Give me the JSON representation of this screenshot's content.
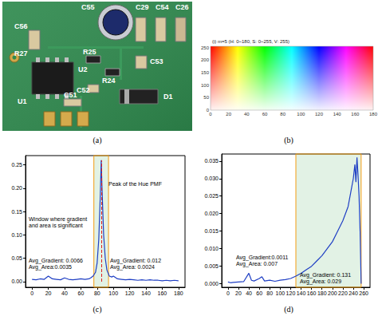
{
  "panels": [
    "(a)",
    "(b)",
    "(c)",
    "(d)"
  ],
  "photo": {
    "labels": [
      "C55",
      "C29",
      "C54",
      "C26",
      "C56",
      "R27",
      "R25",
      "U2",
      "R24",
      "C53",
      "C52",
      "U1",
      "C51",
      "D1"
    ]
  },
  "color_map": {
    "title": "(i) m=5 (H: 0~180, S: 0~255, V: 255)",
    "xlim": [
      0,
      180
    ],
    "xticks": [
      0,
      20,
      40,
      60,
      80,
      100,
      120,
      140,
      160,
      180
    ],
    "ylim": [
      0,
      255
    ],
    "yticks": [
      0,
      50,
      100,
      150,
      200,
      250
    ]
  },
  "chart_data": [
    {
      "type": "line",
      "color": "#1f3fc4",
      "x": [
        0,
        5,
        10,
        15,
        20,
        25,
        30,
        35,
        40,
        45,
        50,
        55,
        60,
        65,
        70,
        72,
        75,
        78,
        80,
        82,
        84,
        85,
        86,
        88,
        90,
        92,
        95,
        98,
        100,
        105,
        110,
        115,
        120,
        125,
        130,
        135,
        140,
        145,
        150,
        155,
        160,
        165,
        170,
        175,
        180
      ],
      "values": [
        0.005,
        0.004,
        0.006,
        0.005,
        0.012,
        0.006,
        0.005,
        0.004,
        0.008,
        0.005,
        0.004,
        0.005,
        0.006,
        0.005,
        0.006,
        0.008,
        0.012,
        0.02,
        0.04,
        0.09,
        0.19,
        0.26,
        0.2,
        0.1,
        0.05,
        0.025,
        0.012,
        0.01,
        0.012,
        0.006,
        0.005,
        0.004,
        0.005,
        0.004,
        0.003,
        0.004,
        0.003,
        0.004,
        0.003,
        0.003,
        0.002,
        0.003,
        0.002,
        0.003,
        0.002
      ],
      "xlim": [
        -8,
        188
      ],
      "xticks": [
        0,
        20,
        40,
        60,
        80,
        100,
        120,
        140,
        160,
        180
      ],
      "ylim": [
        -0.012,
        0.27
      ],
      "yticks": [
        {
          "value": 0,
          "label": "0.00"
        },
        0.05,
        {
          "value": 0.1,
          "label": "0.10"
        },
        0.15,
        {
          "value": 0.2,
          "label": "0.20"
        },
        0.25
      ],
      "window": [
        76,
        94
      ],
      "annotations": [
        "Peak of the Hue PMF",
        "Window where gradient\nand area is significant",
        "Avg_Gradient: 0.0066\nAvg_Area:0.0035",
        "Avg_Gradient: 0.012\nAvg_Area: 0.0024"
      ]
    },
    {
      "type": "line",
      "color": "#1f3fc4",
      "x": [
        0,
        5,
        10,
        20,
        30,
        40,
        45,
        50,
        60,
        65,
        70,
        80,
        90,
        100,
        110,
        120,
        130,
        140,
        150,
        160,
        170,
        180,
        190,
        200,
        210,
        220,
        230,
        235,
        240,
        243,
        245,
        247,
        249,
        251,
        253,
        255
      ],
      "values": [
        0.0005,
        0.0003,
        0.0004,
        0.0005,
        0.0006,
        0.003,
        0.001,
        0.0008,
        0.0015,
        0.002,
        0.0008,
        0.001,
        0.0007,
        0.001,
        0.0012,
        0.0015,
        0.0022,
        0.003,
        0.004,
        0.005,
        0.0065,
        0.008,
        0.01,
        0.012,
        0.015,
        0.018,
        0.022,
        0.026,
        0.03,
        0.034,
        0.029,
        0.036,
        0.031,
        0.025,
        0.015,
        0.0
      ],
      "xlim": [
        -12,
        272
      ],
      "xticks": [
        0,
        20,
        40,
        60,
        80,
        100,
        120,
        140,
        160,
        180,
        200,
        220,
        240,
        260
      ],
      "ylim": [
        -0.001,
        0.037
      ],
      "yticks": [
        {
          "value": 0,
          "label": "0.000"
        },
        0.005,
        {
          "value": 0.01,
          "label": "0.010"
        },
        0.015,
        {
          "value": 0.02,
          "label": "0.020"
        },
        0.025,
        {
          "value": 0.03,
          "label": "0.030"
        },
        0.035
      ],
      "window": [
        130,
        255
      ],
      "annotations": [
        "Avg_Gradient:0.0011\nAvg_Area: 0.007",
        "Avg_Gradient: 0.131\nAvg_Area: 0.029"
      ]
    }
  ]
}
